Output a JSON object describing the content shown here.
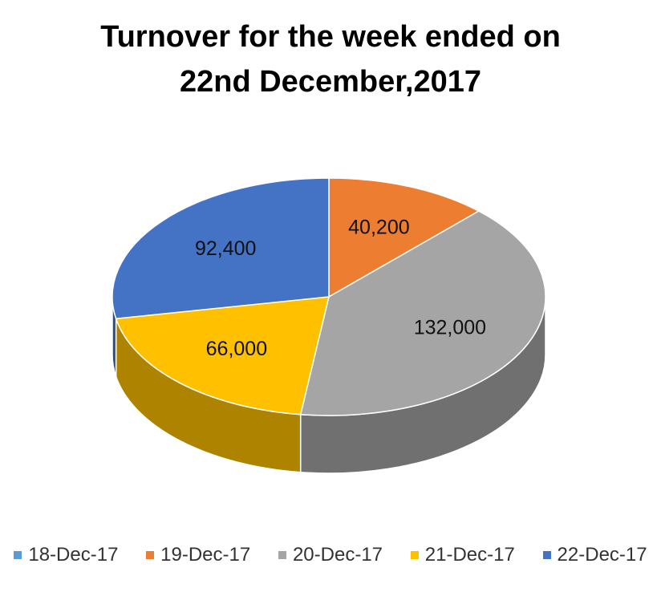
{
  "chart_data": {
    "type": "pie3d",
    "title": "Turnover for the week ended on 22nd December,2017",
    "categories": [
      "18-Dec-17",
      "19-Dec-17",
      "20-Dec-17",
      "21-Dec-17",
      "22-Dec-17"
    ],
    "values": [
      0,
      40200,
      132000,
      66000,
      92400
    ],
    "value_labels": [
      null,
      "40,200",
      "132,000",
      "66,000",
      "92,400"
    ],
    "colors": [
      "#5b9bd5",
      "#ed7d31",
      "#a5a5a5",
      "#ffc000",
      "#4472c4"
    ],
    "legend": "bottom"
  }
}
